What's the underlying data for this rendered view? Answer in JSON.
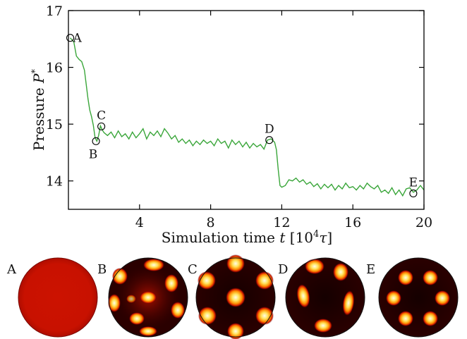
{
  "chart_data": {
    "type": "line",
    "title": "",
    "xlabel": "Simulation time",
    "xlabel_var": "t",
    "xlabel_unit_open": "[10",
    "xlabel_unit_exp": "4",
    "xlabel_unit_tau": "τ",
    "xlabel_unit_close": "]",
    "ylabel": "Pressure",
    "ylabel_var": "P",
    "ylabel_sup": "*",
    "xlim": [
      0,
      20
    ],
    "ylim": [
      13.5,
      17
    ],
    "xticks": [
      4,
      8,
      12,
      16,
      20
    ],
    "xtick_labels": [
      "4",
      "8",
      "12",
      "16",
      "20"
    ],
    "yticks": [
      14,
      15,
      16,
      17
    ],
    "ytick_labels": [
      "14",
      "15",
      "16",
      "17"
    ],
    "grid": false,
    "line_color": "#3aa63a",
    "series": [
      {
        "values": [
          [
            0.1,
            16.52
          ],
          [
            0.3,
            16.45
          ],
          [
            0.45,
            16.2
          ],
          [
            0.6,
            16.14
          ],
          [
            0.75,
            16.1
          ],
          [
            0.9,
            15.95
          ],
          [
            1.0,
            15.7
          ],
          [
            1.1,
            15.45
          ],
          [
            1.2,
            15.25
          ],
          [
            1.3,
            15.13
          ],
          [
            1.4,
            14.98
          ],
          [
            1.5,
            14.76
          ],
          [
            1.6,
            14.7
          ],
          [
            1.7,
            14.8
          ],
          [
            1.8,
            14.97
          ],
          [
            1.9,
            14.9
          ],
          [
            2.0,
            14.85
          ],
          [
            2.2,
            14.8
          ],
          [
            2.4,
            14.86
          ],
          [
            2.6,
            14.76
          ],
          [
            2.8,
            14.88
          ],
          [
            3.0,
            14.78
          ],
          [
            3.2,
            14.83
          ],
          [
            3.4,
            14.74
          ],
          [
            3.6,
            14.86
          ],
          [
            3.8,
            14.76
          ],
          [
            4.0,
            14.83
          ],
          [
            4.2,
            14.92
          ],
          [
            4.4,
            14.74
          ],
          [
            4.6,
            14.86
          ],
          [
            4.8,
            14.8
          ],
          [
            5.0,
            14.88
          ],
          [
            5.2,
            14.78
          ],
          [
            5.4,
            14.92
          ],
          [
            5.6,
            14.84
          ],
          [
            5.8,
            14.74
          ],
          [
            6.0,
            14.8
          ],
          [
            6.2,
            14.68
          ],
          [
            6.4,
            14.74
          ],
          [
            6.6,
            14.66
          ],
          [
            6.8,
            14.72
          ],
          [
            7.0,
            14.62
          ],
          [
            7.2,
            14.7
          ],
          [
            7.4,
            14.64
          ],
          [
            7.6,
            14.72
          ],
          [
            7.8,
            14.66
          ],
          [
            8.0,
            14.7
          ],
          [
            8.2,
            14.62
          ],
          [
            8.4,
            14.74
          ],
          [
            8.6,
            14.66
          ],
          [
            8.8,
            14.7
          ],
          [
            9.0,
            14.58
          ],
          [
            9.2,
            14.72
          ],
          [
            9.4,
            14.64
          ],
          [
            9.6,
            14.7
          ],
          [
            9.8,
            14.6
          ],
          [
            10.0,
            14.68
          ],
          [
            10.2,
            14.58
          ],
          [
            10.4,
            14.66
          ],
          [
            10.6,
            14.6
          ],
          [
            10.8,
            14.64
          ],
          [
            11.0,
            14.56
          ],
          [
            11.2,
            14.72
          ],
          [
            11.4,
            14.74
          ],
          [
            11.6,
            14.68
          ],
          [
            11.7,
            14.55
          ],
          [
            11.8,
            14.2
          ],
          [
            11.9,
            13.92
          ],
          [
            12.0,
            13.89
          ],
          [
            12.2,
            13.92
          ],
          [
            12.4,
            14.02
          ],
          [
            12.6,
            14.0
          ],
          [
            12.8,
            14.05
          ],
          [
            13.0,
            13.98
          ],
          [
            13.2,
            14.02
          ],
          [
            13.4,
            13.94
          ],
          [
            13.6,
            13.98
          ],
          [
            13.8,
            13.9
          ],
          [
            14.0,
            13.95
          ],
          [
            14.2,
            13.86
          ],
          [
            14.4,
            13.94
          ],
          [
            14.6,
            13.88
          ],
          [
            14.8,
            13.94
          ],
          [
            15.0,
            13.84
          ],
          [
            15.2,
            13.92
          ],
          [
            15.4,
            13.86
          ],
          [
            15.6,
            13.96
          ],
          [
            15.8,
            13.88
          ],
          [
            16.0,
            13.9
          ],
          [
            16.2,
            13.84
          ],
          [
            16.4,
            13.92
          ],
          [
            16.6,
            13.86
          ],
          [
            16.8,
            13.96
          ],
          [
            17.0,
            13.9
          ],
          [
            17.2,
            13.86
          ],
          [
            17.4,
            13.92
          ],
          [
            17.6,
            13.8
          ],
          [
            17.8,
            13.84
          ],
          [
            18.0,
            13.78
          ],
          [
            18.2,
            13.88
          ],
          [
            18.4,
            13.76
          ],
          [
            18.6,
            13.84
          ],
          [
            18.8,
            13.74
          ],
          [
            19.0,
            13.86
          ],
          [
            19.2,
            13.88
          ],
          [
            19.4,
            13.8
          ],
          [
            19.6,
            13.84
          ],
          [
            19.8,
            13.92
          ],
          [
            20.0,
            13.84
          ]
        ]
      }
    ],
    "annotations": [
      {
        "label": "A",
        "x": 0.1,
        "y": 16.52,
        "label_pos": "right"
      },
      {
        "label": "B",
        "x": 1.55,
        "y": 14.7,
        "label_pos": "below"
      },
      {
        "label": "C",
        "x": 1.85,
        "y": 14.96,
        "label_pos": "above"
      },
      {
        "label": "D",
        "x": 11.3,
        "y": 14.72,
        "label_pos": "above"
      },
      {
        "label": "E",
        "x": 19.4,
        "y": 13.78,
        "label_pos": "above"
      }
    ]
  },
  "snapshots": [
    {
      "label": "A",
      "pattern": "uniform"
    },
    {
      "label": "B",
      "pattern": "irregular"
    },
    {
      "label": "C",
      "pattern": "ring-with-center"
    },
    {
      "label": "D",
      "pattern": "elongated-ring"
    },
    {
      "label": "E",
      "pattern": "hexagonal-ring"
    }
  ]
}
